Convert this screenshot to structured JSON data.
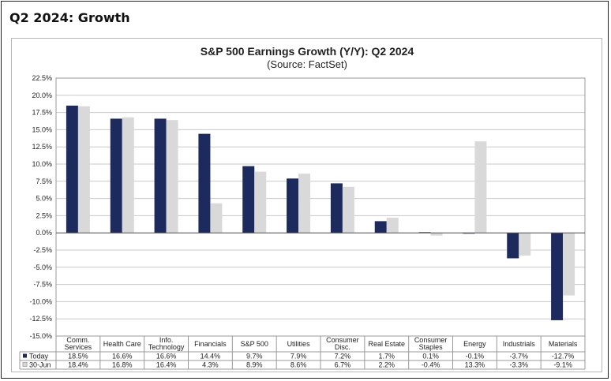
{
  "page": {
    "heading": "Q2 2024: Growth"
  },
  "chart_data": {
    "type": "bar",
    "title": "S&P 500 Earnings Growth (Y/Y): Q2 2024",
    "subtitle": "(Source: FactSet)",
    "ylim": [
      -15,
      22.5
    ],
    "ytick_step": 2.5,
    "grid": true,
    "legend": "table-below",
    "categories": [
      [
        "Comm.",
        "Services"
      ],
      [
        "Health Care"
      ],
      [
        "Info.",
        "Technology"
      ],
      [
        "Financials"
      ],
      [
        "S&P 500"
      ],
      [
        "Utilities"
      ],
      [
        "Consumer",
        "Disc."
      ],
      [
        "Real Estate"
      ],
      [
        "Consumer",
        "Staples"
      ],
      [
        "Energy"
      ],
      [
        "Industrials"
      ],
      [
        "Materials"
      ]
    ],
    "series": [
      {
        "name": "Today",
        "color": "#1c2a5e",
        "values": [
          18.5,
          16.6,
          16.6,
          14.4,
          9.7,
          7.9,
          7.2,
          1.7,
          0.1,
          -0.1,
          -3.7,
          -12.7
        ],
        "labels": [
          "18.5%",
          "16.6%",
          "16.6%",
          "14.4%",
          "9.7%",
          "7.9%",
          "7.2%",
          "1.7%",
          "0.1%",
          "-0.1%",
          "-3.7%",
          "-12.7%"
        ]
      },
      {
        "name": "30-Jun",
        "color": "#d9d9d9",
        "values": [
          18.4,
          16.8,
          16.4,
          4.3,
          8.9,
          8.6,
          6.7,
          2.2,
          -0.4,
          13.3,
          -3.3,
          -9.1
        ],
        "labels": [
          "18.4%",
          "16.8%",
          "16.4%",
          "4.3%",
          "8.9%",
          "8.6%",
          "6.7%",
          "2.2%",
          "-0.4%",
          "13.3%",
          "-3.3%",
          "-9.1%"
        ]
      }
    ]
  }
}
